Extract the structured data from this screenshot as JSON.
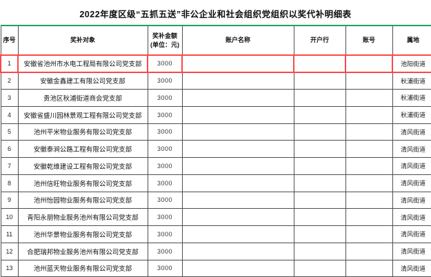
{
  "title": "2022年度区级“五抓五送”非公企业和社会组织党组织以奖代补明细表",
  "colors": {
    "table_top_border": "#1fa05e",
    "highlight_border": "#fb4747",
    "grid_line": "#4d4d4d"
  },
  "table": {
    "columns": [
      {
        "label": "序号"
      },
      {
        "label": "奖补对象"
      },
      {
        "label": "奖补金额",
        "sub": "(单位：元)"
      },
      {
        "label": "账户名称"
      },
      {
        "label": "开户行"
      },
      {
        "label": "账号"
      },
      {
        "label": "属地"
      }
    ],
    "rows": [
      [
        "1",
        "安徽省池州市水电工程局有限公司党支部",
        "3000",
        "",
        "",
        "",
        "池阳街道"
      ],
      [
        "2",
        "安徽金鑫建工有限公司党支部",
        "3000",
        "",
        "",
        "",
        "秋浦街道"
      ],
      [
        "3",
        "贵池区秋浦街道商会党支部",
        "3000",
        "",
        "",
        "",
        "秋浦街道"
      ],
      [
        "4",
        "安徽省盛川园林景观工程有限公司党支部",
        "3000",
        "",
        "",
        "",
        "秋浦街道"
      ],
      [
        "5",
        "池州平米物业服务有限公司党支部",
        "3000",
        "",
        "",
        "",
        "清风街道"
      ],
      [
        "6",
        "安徽泰涧公路工程有限公司党支部",
        "3000",
        "",
        "",
        "",
        "清风街道"
      ],
      [
        "7",
        "安徽乾维建设工程有限公司党支部",
        "3000",
        "",
        "",
        "",
        "清风街道"
      ],
      [
        "8",
        "池州信旺物业服务有限公司党支部",
        "3000",
        "",
        "",
        "",
        "清风街道"
      ],
      [
        "9",
        "池州怡园物业服务有限公司党支部",
        "3000",
        "",
        "",
        "",
        "清风街道"
      ],
      [
        "10",
        "青阳永朋物业服务池州有限公司党支部",
        "3000",
        "",
        "",
        "",
        "清风街道"
      ],
      [
        "11",
        "池州华景物业服务有限公司党支部",
        "3000",
        "",
        "",
        "",
        "清风街道"
      ],
      [
        "12",
        "合肥瑞邦物业服务池州有限公司党支部",
        "3000",
        "",
        "",
        "",
        "清风街道"
      ],
      [
        "13",
        "池州蓝天物业服务有限公司党支部",
        "3000",
        "",
        "",
        "",
        "清风街道"
      ]
    ],
    "highlighted_row_index": 0
  }
}
